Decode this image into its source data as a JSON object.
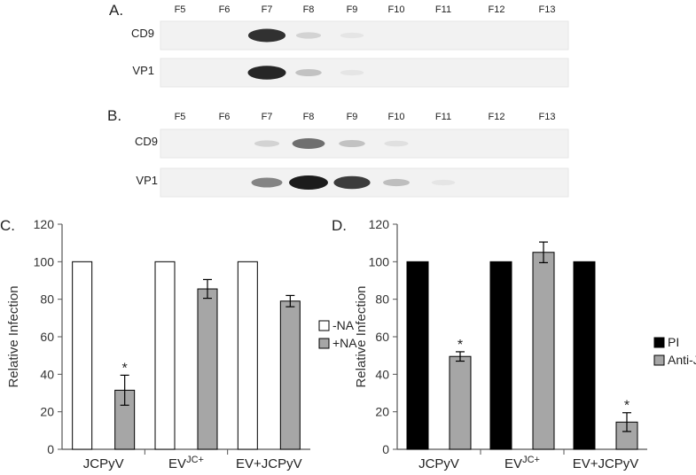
{
  "panel_a": {
    "label": "A.",
    "fractions": [
      "F5",
      "F6",
      "F7",
      "F8",
      "F9",
      "F10",
      "F11",
      "F12",
      "F13"
    ],
    "rows": [
      {
        "label": "CD9",
        "band_intensity": [
          0,
          0,
          0.9,
          0.12,
          0.03,
          0,
          0,
          0,
          0
        ]
      },
      {
        "label": "VP1",
        "band_intensity": [
          0,
          0,
          0.95,
          0.2,
          0.03,
          0,
          0,
          0,
          0
        ]
      }
    ]
  },
  "panel_b": {
    "label": "B.",
    "fractions": [
      "F5",
      "F6",
      "F7",
      "F8",
      "F9",
      "F10",
      "F11",
      "F12",
      "F13"
    ],
    "rows": [
      {
        "label": "CD9",
        "band_intensity": [
          0,
          0,
          0.12,
          0.6,
          0.2,
          0.06,
          0,
          0,
          0
        ]
      },
      {
        "label": "VP1",
        "band_intensity": [
          0,
          0,
          0.5,
          1.0,
          0.85,
          0.22,
          0.03,
          0,
          0
        ]
      }
    ]
  },
  "chart_data": [
    {
      "panel": "C.",
      "type": "bar",
      "ylabel": "Relative Infection",
      "ylim": [
        0,
        120
      ],
      "yticks": [
        "0",
        "20",
        "40",
        "60",
        "80",
        "100",
        "120"
      ],
      "categories": [
        {
          "main": "JCPyV",
          "sup": ""
        },
        {
          "main": "EV",
          "sup": "JC+"
        },
        {
          "main": "EV+JCPyV",
          "sup": ""
        }
      ],
      "series": [
        {
          "name": "-NA",
          "color": "#ffffff",
          "values": [
            100,
            100,
            100
          ],
          "errors": [
            0,
            0,
            0
          ]
        },
        {
          "name": "+NA",
          "color": "#a6a6a6",
          "values": [
            31.5,
            85.5,
            79
          ],
          "errors": [
            8,
            5,
            3
          ]
        }
      ],
      "annotations": [
        {
          "text": "*",
          "category": 0,
          "series": 1
        }
      ],
      "legend": "right"
    },
    {
      "panel": "D.",
      "type": "bar",
      "ylabel": "Relative Infection",
      "ylim": [
        0,
        120
      ],
      "yticks": [
        "0",
        "20",
        "40",
        "60",
        "80",
        "100",
        "120"
      ],
      "categories": [
        {
          "main": "JCPyV",
          "sup": ""
        },
        {
          "main": "EV",
          "sup": "JC+"
        },
        {
          "main": "EV+JCPyV",
          "sup": ""
        }
      ],
      "series": [
        {
          "name": "PI",
          "color": "#000000",
          "values": [
            100,
            100,
            100
          ],
          "errors": [
            0,
            0,
            0
          ]
        },
        {
          "name": "Anti-JC",
          "color": "#a6a6a6",
          "values": [
            49.5,
            105,
            14.5
          ],
          "errors": [
            2.5,
            5.5,
            5
          ]
        }
      ],
      "annotations": [
        {
          "text": "*",
          "category": 0,
          "series": 1
        },
        {
          "text": "*",
          "category": 2,
          "series": 1
        }
      ],
      "legend": "right"
    }
  ]
}
